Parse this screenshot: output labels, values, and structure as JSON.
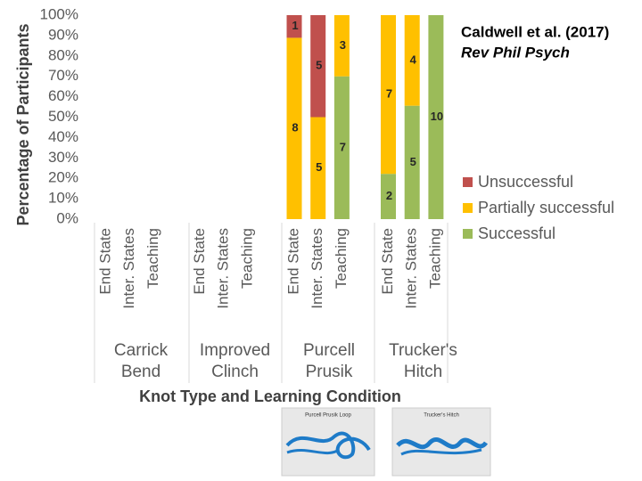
{
  "chart_data": {
    "type": "stacked-bar",
    "ylabel": "Percentage of Participants",
    "xlabel": "Knot Type and Learning Condition",
    "annotations": [
      "Caldwell et al. (2017)",
      "Rev Phil Psych"
    ],
    "groups": [
      [
        "Carrick",
        "Bend"
      ],
      [
        "Improved",
        "Clinch"
      ],
      [
        "Purcell",
        "Prusik"
      ],
      [
        "Trucker's",
        "Hitch"
      ]
    ],
    "categories": [
      "End State",
      "Inter. States",
      "Teaching",
      "End State",
      "Inter. States",
      "Teaching",
      "End State",
      "Inter. States",
      "Teaching",
      "End State",
      "Inter. States",
      "Teaching"
    ],
    "ylim": [
      0,
      100
    ],
    "yticks": [
      {
        "value": 0,
        "label": "0%"
      },
      {
        "value": 10,
        "label": "10%"
      },
      {
        "value": 20,
        "label": "20%"
      },
      {
        "value": 30,
        "label": "30%"
      },
      {
        "value": 40,
        "label": "40%"
      },
      {
        "value": 50,
        "label": "50%"
      },
      {
        "value": 60,
        "label": "60%"
      },
      {
        "value": 70,
        "label": "70%"
      },
      {
        "value": 80,
        "label": "80%"
      },
      {
        "value": 90,
        "label": "90%"
      },
      {
        "value": 100,
        "label": "100%"
      }
    ],
    "series": [
      {
        "name": "Successful",
        "color": "#9bbb59",
        "values": [
          null,
          null,
          null,
          null,
          null,
          null,
          null,
          null,
          70,
          22.2,
          55.6,
          100
        ],
        "counts": [
          null,
          null,
          null,
          null,
          null,
          null,
          null,
          null,
          7,
          2,
          5,
          10
        ]
      },
      {
        "name": "Partially successful",
        "color": "#ffc000",
        "values": [
          null,
          null,
          null,
          null,
          null,
          null,
          88.9,
          50,
          30,
          77.8,
          44.4,
          null
        ],
        "counts": [
          null,
          null,
          null,
          null,
          null,
          null,
          8,
          5,
          3,
          7,
          4,
          null
        ]
      },
      {
        "name": "Unsuccessful",
        "color": "#c0504d",
        "values": [
          null,
          null,
          null,
          null,
          null,
          null,
          11.1,
          50,
          null,
          null,
          null,
          null
        ],
        "counts": [
          null,
          null,
          null,
          null,
          null,
          null,
          1,
          5,
          null,
          null,
          null,
          null
        ]
      }
    ],
    "images": [
      "Purcell Prusik Loop",
      "Trucker's Hitch"
    ]
  }
}
